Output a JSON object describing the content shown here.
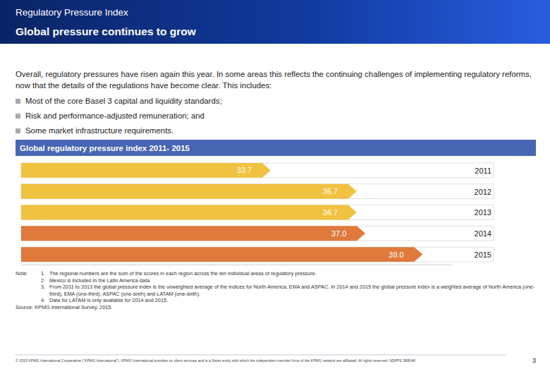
{
  "header": {
    "kicker": "Regulatory Pressure Index",
    "title": "Global pressure continues to grow"
  },
  "intro": "Overall, regulatory pressures have risen again this year. In some areas this reflects the continuing challenges of implementing regulatory reforms, now that the details of the regulations have become clear. This includes:",
  "bullets": [
    "Most of the core Basel 3 capital and liquidity standards;",
    "Risk and performance-adjusted remuneration; and",
    "Some market infrastructure requirements."
  ],
  "chart_data": {
    "type": "bar",
    "orientation": "horizontal",
    "title": "Global regulatory pressure index 2011- 2015",
    "categories": [
      "2011",
      "2012",
      "2013",
      "2014",
      "2015"
    ],
    "values": [
      33.7,
      36.7,
      36.7,
      37.0,
      39.0
    ],
    "value_labels": [
      "33.7",
      "36.7",
      "36.7",
      "37.0",
      "39.0"
    ],
    "colors": [
      "#f0c23f",
      "#f0c23f",
      "#f0c23f",
      "#df7a3c",
      "#df7a3c"
    ],
    "xlim": [
      25,
      40
    ],
    "data_labels": true,
    "tick_labels": "y"
  },
  "notes": {
    "label": "Note:",
    "items": [
      {
        "number": "1.",
        "text": "The regional numbers are the sum of the scores in each region across the ten individual areas of regulatory pressure."
      },
      {
        "number": "2.",
        "text": "Mexico is included in the Latin America data."
      },
      {
        "number": "3.",
        "text": "From 2011 to 2013 the global pressure index is the unweighted average of the indices for North America, EMA and ASPAC. In 2014 and 2015 the global pressure index is a weighted average of North America (one-third), EMA (one-third), ASPAC (one-sixth) and LATAM (one-sixth)."
      },
      {
        "number": "4.",
        "text": "Data for LATAM is only available for 2014 and 2015."
      }
    ],
    "source": "Source: KPMG International Survey, 2015."
  },
  "footer": {
    "copyright": "© 2015 KPMG International Cooperative (\"KPMG International\"). KPMG International provides no client services and is a Swiss entity with which the independent member firms of the KPMG network are affiliated. All rights reserved. NDPPS 388048",
    "page": "3"
  }
}
